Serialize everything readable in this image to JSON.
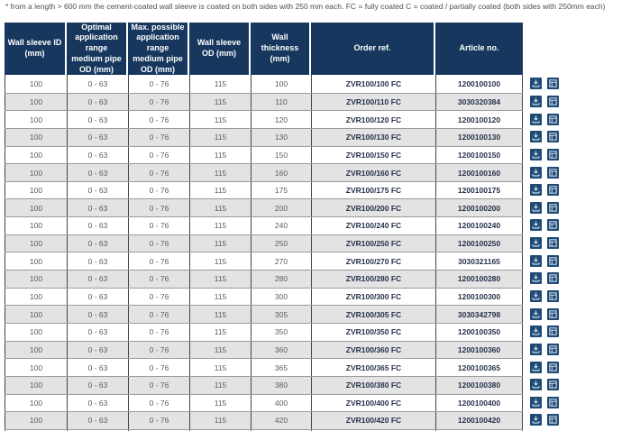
{
  "footnote": "* from a length > 600 mm the cement-coated wall sleeve is coated on both sides with 250 mm each. FC = fully coated C = coated / partially coated (both sides with 250mm each)",
  "colors": {
    "header_bg": "#17375e",
    "header_text": "#ffffff",
    "row_alt_bg": "#e3e3e3",
    "row_bg": "#ffffff",
    "cell_border_vertical": "#454545",
    "row_border_horizontal": "#9b9b9b",
    "action_button_bg": "#1e4a74",
    "numeric_text": "#5b5b5b",
    "strong_text": "#26304d"
  },
  "table": {
    "columns": [
      "Wall sleeve ID (mm)",
      "Optimal application range medium pipe OD (mm)",
      "Max. possible application range medium pipe OD (mm)",
      "Wall sleeve OD (mm)",
      "Wall thickness (mm)",
      "Order ref.",
      "Article no."
    ],
    "rows": [
      {
        "wall_sleeve_id": "100",
        "optimal_range": "0 - 63",
        "max_range": "0 - 76",
        "sleeve_od": "115",
        "thickness": "100",
        "order_ref": "ZVR100/100 FC",
        "article_no": "1200100100"
      },
      {
        "wall_sleeve_id": "100",
        "optimal_range": "0 - 63",
        "max_range": "0 - 76",
        "sleeve_od": "115",
        "thickness": "110",
        "order_ref": "ZVR100/110 FC",
        "article_no": "3030320384"
      },
      {
        "wall_sleeve_id": "100",
        "optimal_range": "0 - 63",
        "max_range": "0 - 76",
        "sleeve_od": "115",
        "thickness": "120",
        "order_ref": "ZVR100/120 FC",
        "article_no": "1200100120"
      },
      {
        "wall_sleeve_id": "100",
        "optimal_range": "0 - 63",
        "max_range": "0 - 76",
        "sleeve_od": "115",
        "thickness": "130",
        "order_ref": "ZVR100/130 FC",
        "article_no": "1200100130"
      },
      {
        "wall_sleeve_id": "100",
        "optimal_range": "0 - 63",
        "max_range": "0 - 76",
        "sleeve_od": "115",
        "thickness": "150",
        "order_ref": "ZVR100/150 FC",
        "article_no": "1200100150"
      },
      {
        "wall_sleeve_id": "100",
        "optimal_range": "0 - 63",
        "max_range": "0 - 76",
        "sleeve_od": "115",
        "thickness": "160",
        "order_ref": "ZVR100/160 FC",
        "article_no": "1200100160"
      },
      {
        "wall_sleeve_id": "100",
        "optimal_range": "0 - 63",
        "max_range": "0 - 76",
        "sleeve_od": "115",
        "thickness": "175",
        "order_ref": "ZVR100/175 FC",
        "article_no": "1200100175"
      },
      {
        "wall_sleeve_id": "100",
        "optimal_range": "0 - 63",
        "max_range": "0 - 76",
        "sleeve_od": "115",
        "thickness": "200",
        "order_ref": "ZVR100/200 FC",
        "article_no": "1200100200"
      },
      {
        "wall_sleeve_id": "100",
        "optimal_range": "0 - 63",
        "max_range": "0 - 76",
        "sleeve_od": "115",
        "thickness": "240",
        "order_ref": "ZVR100/240 FC",
        "article_no": "1200100240"
      },
      {
        "wall_sleeve_id": "100",
        "optimal_range": "0 - 63",
        "max_range": "0 - 76",
        "sleeve_od": "115",
        "thickness": "250",
        "order_ref": "ZVR100/250 FC",
        "article_no": "1200100250"
      },
      {
        "wall_sleeve_id": "100",
        "optimal_range": "0 - 63",
        "max_range": "0 - 76",
        "sleeve_od": "115",
        "thickness": "270",
        "order_ref": "ZVR100/270 FC",
        "article_no": "3030321165"
      },
      {
        "wall_sleeve_id": "100",
        "optimal_range": "0 - 63",
        "max_range": "0 - 76",
        "sleeve_od": "115",
        "thickness": "280",
        "order_ref": "ZVR100/280 FC",
        "article_no": "1200100280"
      },
      {
        "wall_sleeve_id": "100",
        "optimal_range": "0 - 63",
        "max_range": "0 - 76",
        "sleeve_od": "115",
        "thickness": "300",
        "order_ref": "ZVR100/300 FC",
        "article_no": "1200100300"
      },
      {
        "wall_sleeve_id": "100",
        "optimal_range": "0 - 63",
        "max_range": "0 - 76",
        "sleeve_od": "115",
        "thickness": "305",
        "order_ref": "ZVR100/305 FC",
        "article_no": "3030342798"
      },
      {
        "wall_sleeve_id": "100",
        "optimal_range": "0 - 63",
        "max_range": "0 - 76",
        "sleeve_od": "115",
        "thickness": "350",
        "order_ref": "ZVR100/350 FC",
        "article_no": "1200100350"
      },
      {
        "wall_sleeve_id": "100",
        "optimal_range": "0 - 63",
        "max_range": "0 - 76",
        "sleeve_od": "115",
        "thickness": "360",
        "order_ref": "ZVR100/360 FC",
        "article_no": "1200100360"
      },
      {
        "wall_sleeve_id": "100",
        "optimal_range": "0 - 63",
        "max_range": "0 - 76",
        "sleeve_od": "115",
        "thickness": "365",
        "order_ref": "ZVR100/365 FC",
        "article_no": "1200100365"
      },
      {
        "wall_sleeve_id": "100",
        "optimal_range": "0 - 63",
        "max_range": "0 - 76",
        "sleeve_od": "115",
        "thickness": "380",
        "order_ref": "ZVR100/380 FC",
        "article_no": "1200100380"
      },
      {
        "wall_sleeve_id": "100",
        "optimal_range": "0 - 63",
        "max_range": "0 - 76",
        "sleeve_od": "115",
        "thickness": "400",
        "order_ref": "ZVR100/400 FC",
        "article_no": "1200100400"
      },
      {
        "wall_sleeve_id": "100",
        "optimal_range": "0 - 63",
        "max_range": "0 - 76",
        "sleeve_od": "115",
        "thickness": "420",
        "order_ref": "ZVR100/420 FC",
        "article_no": "1200100420"
      }
    ]
  },
  "row_actions": [
    {
      "icon": "download-icon",
      "name": "download-button"
    },
    {
      "icon": "table-icon",
      "name": "table-view-button"
    }
  ]
}
